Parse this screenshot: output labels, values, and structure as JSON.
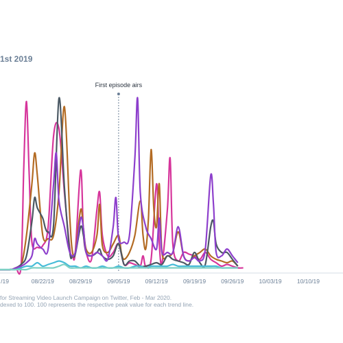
{
  "title": "1st 2019",
  "footnote_line1": "for Streaming Video Launch Campaign on Twitter, Feb - Mar 2020.",
  "footnote_line2": "dexed to 100. 100 represents the respective peak value for each trend line.",
  "chart_data": {
    "type": "line",
    "x_ticks": [
      "/19",
      "08/22/19",
      "08/29/19",
      "09/05/19",
      "09/12/19",
      "09/19/19",
      "09/26/19",
      "10/03/19",
      "10/10/19"
    ],
    "ylim": [
      0,
      100
    ],
    "annotation": {
      "label": "First episode airs",
      "date": "09/05/19"
    },
    "grid": false,
    "legend": "none",
    "series": [
      {
        "color": "#d6359b",
        "points": [
          [
            -2,
            0
          ],
          [
            1,
            0
          ],
          [
            2,
            1
          ],
          [
            3,
            2
          ],
          [
            3.5,
            60
          ],
          [
            4,
            98
          ],
          [
            4.5,
            55
          ],
          [
            5,
            16
          ],
          [
            6,
            13
          ],
          [
            7,
            14
          ],
          [
            8,
            25
          ],
          [
            9,
            78
          ],
          [
            10,
            82
          ],
          [
            11,
            45
          ],
          [
            12,
            12
          ],
          [
            12.5,
            8
          ],
          [
            13,
            10
          ],
          [
            14,
            58
          ],
          [
            14.5,
            22
          ],
          [
            15,
            10
          ],
          [
            16,
            6
          ],
          [
            17,
            35
          ],
          [
            17.5,
            45
          ],
          [
            18,
            20
          ],
          [
            19,
            8
          ],
          [
            20,
            10
          ],
          [
            21,
            15
          ],
          [
            22,
            3
          ],
          [
            23,
            4
          ],
          [
            24,
            3
          ],
          [
            25,
            2
          ],
          [
            25.5,
            8
          ],
          [
            26,
            2
          ],
          [
            27,
            6
          ],
          [
            28,
            50
          ],
          [
            28.5,
            15
          ],
          [
            29,
            4
          ],
          [
            30,
            35
          ],
          [
            30.5,
            65
          ],
          [
            31,
            15
          ],
          [
            32,
            5
          ],
          [
            33,
            10
          ],
          [
            34,
            9
          ],
          [
            35,
            8
          ],
          [
            36,
            6
          ],
          [
            37,
            10
          ],
          [
            38,
            6
          ],
          [
            39,
            4
          ],
          [
            40,
            2
          ],
          [
            41,
            3
          ],
          [
            42,
            2
          ],
          [
            43,
            1
          ],
          [
            44,
            1
          ]
        ]
      },
      {
        "color": "#b36b23",
        "points": [
          [
            -2,
            0
          ],
          [
            1,
            0
          ],
          [
            2,
            1
          ],
          [
            3,
            2
          ],
          [
            4,
            20
          ],
          [
            5,
            50
          ],
          [
            5.5,
            68
          ],
          [
            6,
            55
          ],
          [
            7,
            20
          ],
          [
            8,
            18
          ],
          [
            9,
            20
          ],
          [
            10,
            45
          ],
          [
            11,
            95
          ],
          [
            12,
            30
          ],
          [
            12.5,
            10
          ],
          [
            13,
            10
          ],
          [
            14,
            35
          ],
          [
            14.5,
            24
          ],
          [
            15,
            12
          ],
          [
            16,
            10
          ],
          [
            17,
            20
          ],
          [
            17.5,
            38
          ],
          [
            18,
            14
          ],
          [
            19,
            10
          ],
          [
            20,
            15
          ],
          [
            21,
            20
          ],
          [
            21.5,
            10
          ],
          [
            22,
            6
          ],
          [
            23,
            10
          ],
          [
            24,
            20
          ],
          [
            25,
            40
          ],
          [
            25.5,
            20
          ],
          [
            26,
            12
          ],
          [
            26.5,
            30
          ],
          [
            27,
            70
          ],
          [
            27.5,
            35
          ],
          [
            28,
            25
          ],
          [
            28.5,
            50
          ],
          [
            29,
            10
          ],
          [
            30,
            8
          ],
          [
            31,
            10
          ],
          [
            32,
            22
          ],
          [
            33,
            8
          ],
          [
            34,
            5
          ],
          [
            35,
            8
          ],
          [
            36,
            10
          ],
          [
            37,
            12
          ],
          [
            38,
            8
          ],
          [
            39,
            6
          ],
          [
            40,
            5
          ],
          [
            41,
            4
          ],
          [
            42,
            5
          ],
          [
            43,
            2
          ]
        ]
      },
      {
        "color": "#4a5863",
        "points": [
          [
            -2,
            0
          ],
          [
            1,
            0
          ],
          [
            2,
            1
          ],
          [
            3,
            3
          ],
          [
            4,
            8
          ],
          [
            5,
            28
          ],
          [
            5.5,
            42
          ],
          [
            6,
            36
          ],
          [
            7,
            30
          ],
          [
            7.5,
            24
          ],
          [
            8,
            22
          ],
          [
            9,
            26
          ],
          [
            10,
            100
          ],
          [
            11,
            48
          ],
          [
            12,
            10
          ],
          [
            12.5,
            8
          ],
          [
            13,
            9
          ],
          [
            14,
            25
          ],
          [
            14.5,
            20
          ],
          [
            15,
            10
          ],
          [
            16,
            8
          ],
          [
            17,
            10
          ],
          [
            17.5,
            12
          ],
          [
            18,
            8
          ],
          [
            19,
            6
          ],
          [
            20,
            8
          ],
          [
            21,
            15
          ],
          [
            22,
            3
          ],
          [
            23,
            5
          ],
          [
            24,
            5
          ],
          [
            25,
            2
          ],
          [
            26,
            2
          ],
          [
            27,
            3
          ],
          [
            28,
            4
          ],
          [
            29,
            3
          ],
          [
            30,
            8
          ],
          [
            31,
            6
          ],
          [
            32,
            5
          ],
          [
            33,
            4
          ],
          [
            34,
            3
          ],
          [
            35,
            10
          ],
          [
            36,
            4
          ],
          [
            37,
            3
          ],
          [
            38,
            25
          ],
          [
            38.5,
            28
          ],
          [
            39,
            15
          ],
          [
            40,
            10
          ],
          [
            41,
            10
          ],
          [
            42,
            6
          ],
          [
            43,
            2
          ]
        ]
      },
      {
        "color": "#8d3fcc",
        "points": [
          [
            -2,
            0
          ],
          [
            1,
            0
          ],
          [
            2,
            1
          ],
          [
            3,
            2
          ],
          [
            4,
            4
          ],
          [
            5,
            8
          ],
          [
            5.5,
            18
          ],
          [
            6,
            15
          ],
          [
            7,
            12
          ],
          [
            8,
            12
          ],
          [
            9,
            50
          ],
          [
            9.5,
            68
          ],
          [
            10,
            40
          ],
          [
            11,
            25
          ],
          [
            12,
            10
          ],
          [
            13,
            10
          ],
          [
            14,
            30
          ],
          [
            14.5,
            24
          ],
          [
            15,
            10
          ],
          [
            16,
            8
          ],
          [
            17,
            10
          ],
          [
            18,
            8
          ],
          [
            19,
            6
          ],
          [
            20,
            25
          ],
          [
            20.5,
            42
          ],
          [
            21,
            18
          ],
          [
            22,
            16
          ],
          [
            23,
            20
          ],
          [
            24,
            65
          ],
          [
            24.5,
            100
          ],
          [
            25,
            45
          ],
          [
            26,
            25
          ],
          [
            27,
            18
          ],
          [
            28,
            12
          ],
          [
            28.5,
            30
          ],
          [
            29,
            10
          ],
          [
            30,
            10
          ],
          [
            31,
            10
          ],
          [
            32,
            25
          ],
          [
            33,
            8
          ],
          [
            34,
            5
          ],
          [
            35,
            7
          ],
          [
            36,
            5
          ],
          [
            37,
            12
          ],
          [
            38,
            55
          ],
          [
            38.5,
            38
          ],
          [
            39,
            10
          ],
          [
            40,
            8
          ],
          [
            41,
            12
          ],
          [
            42,
            8
          ],
          [
            43,
            4
          ]
        ]
      },
      {
        "color": "#46bcd8",
        "points": [
          [
            -2,
            0
          ],
          [
            1,
            0
          ],
          [
            2,
            0
          ],
          [
            3,
            1
          ],
          [
            4,
            2
          ],
          [
            5,
            2
          ],
          [
            6,
            4
          ],
          [
            7,
            2
          ],
          [
            8,
            3
          ],
          [
            9,
            4
          ],
          [
            10,
            5
          ],
          [
            11,
            4
          ],
          [
            12,
            2
          ],
          [
            13,
            2
          ],
          [
            14,
            1
          ],
          [
            15,
            2
          ],
          [
            16,
            1
          ],
          [
            17,
            1
          ],
          [
            18,
            2
          ],
          [
            19,
            1
          ],
          [
            20,
            1
          ],
          [
            21,
            2
          ],
          [
            22,
            1
          ],
          [
            23,
            1
          ],
          [
            24,
            2
          ],
          [
            25,
            2
          ],
          [
            26,
            1
          ],
          [
            27,
            2
          ],
          [
            28,
            2
          ],
          [
            29,
            2
          ],
          [
            30,
            2
          ],
          [
            31,
            3
          ],
          [
            32,
            2
          ],
          [
            33,
            2
          ],
          [
            34,
            2
          ],
          [
            35,
            2
          ],
          [
            36,
            2
          ],
          [
            37,
            2
          ],
          [
            38,
            2
          ],
          [
            39,
            2
          ],
          [
            40,
            1
          ],
          [
            41,
            1
          ],
          [
            42,
            1
          ],
          [
            43,
            1
          ]
        ]
      },
      {
        "color": "#7ed0c4",
        "points": [
          [
            -2,
            0
          ],
          [
            1,
            0
          ],
          [
            2,
            0
          ],
          [
            3,
            0
          ],
          [
            4,
            0
          ],
          [
            5,
            1
          ],
          [
            6,
            1
          ],
          [
            7,
            1
          ],
          [
            8,
            1
          ],
          [
            9,
            1
          ],
          [
            10,
            2
          ],
          [
            11,
            3
          ],
          [
            12,
            1
          ],
          [
            13,
            1
          ],
          [
            14,
            1
          ],
          [
            15,
            1
          ],
          [
            16,
            1
          ],
          [
            17,
            1
          ],
          [
            18,
            1
          ],
          [
            19,
            1
          ],
          [
            20,
            1
          ],
          [
            21,
            1
          ],
          [
            22,
            1
          ],
          [
            23,
            1
          ],
          [
            24,
            1
          ],
          [
            25,
            1
          ],
          [
            26,
            1
          ],
          [
            27,
            1
          ],
          [
            28,
            1
          ],
          [
            29,
            1
          ],
          [
            30,
            1
          ],
          [
            31,
            1
          ],
          [
            32,
            1
          ],
          [
            33,
            1
          ],
          [
            34,
            1
          ],
          [
            35,
            1
          ],
          [
            36,
            1
          ],
          [
            37,
            1
          ],
          [
            38,
            1
          ],
          [
            39,
            1
          ],
          [
            40,
            1
          ],
          [
            41,
            1
          ],
          [
            42,
            1
          ],
          [
            43,
            1
          ]
        ]
      }
    ]
  }
}
